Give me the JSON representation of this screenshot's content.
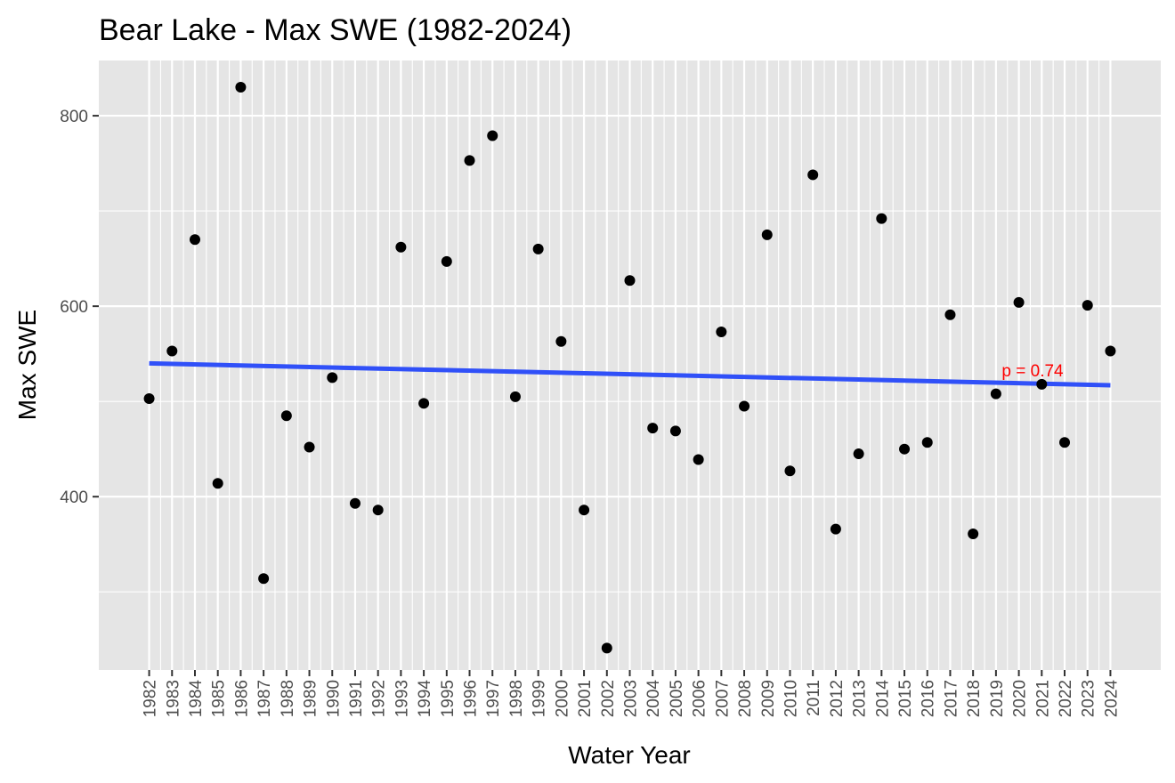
{
  "chart_data": {
    "type": "scatter",
    "title": "Bear Lake - Max SWE (1982-2024)",
    "xlabel": "Water Year",
    "ylabel": "Max SWE",
    "xlim": [
      1979.8,
      2026.2
    ],
    "ylim": [
      218,
      858
    ],
    "y_ticks": [
      400,
      600,
      800
    ],
    "x_ticks": [
      1982,
      1983,
      1984,
      1985,
      1986,
      1987,
      1988,
      1989,
      1990,
      1991,
      1992,
      1993,
      1994,
      1995,
      1996,
      1997,
      1998,
      1999,
      2000,
      2001,
      2002,
      2003,
      2004,
      2005,
      2006,
      2007,
      2008,
      2009,
      2010,
      2011,
      2012,
      2013,
      2014,
      2015,
      2016,
      2017,
      2018,
      2019,
      2020,
      2021,
      2022,
      2023,
      2024
    ],
    "x_tick_labels": [
      "1982",
      "1983",
      "1984",
      "1985",
      "1986",
      "1987",
      "1988",
      "1989",
      "1990",
      "1991",
      "1992",
      "1993",
      "1994",
      "1995",
      "1996",
      "1997",
      "1998",
      "1999",
      "2000",
      "2001",
      "2002",
      "2003",
      "2004",
      "2005",
      "2006",
      "2007",
      "2008",
      "2009",
      "2010",
      "2011",
      "2012",
      "2013",
      "2014",
      "2015",
      "2016",
      "2017",
      "2018",
      "2019",
      "2020",
      "2021",
      "2022",
      "2023",
      "2024"
    ],
    "y_tick_labels": [
      "400",
      "600",
      "800"
    ],
    "grid": true,
    "points": [
      {
        "x": 1982,
        "y": 503
      },
      {
        "x": 1983,
        "y": 553
      },
      {
        "x": 1984,
        "y": 670
      },
      {
        "x": 1985,
        "y": 414
      },
      {
        "x": 1986,
        "y": 830
      },
      {
        "x": 1987,
        "y": 314
      },
      {
        "x": 1988,
        "y": 485
      },
      {
        "x": 1989,
        "y": 452
      },
      {
        "x": 1990,
        "y": 525
      },
      {
        "x": 1991,
        "y": 393
      },
      {
        "x": 1992,
        "y": 386
      },
      {
        "x": 1993,
        "y": 662
      },
      {
        "x": 1994,
        "y": 498
      },
      {
        "x": 1995,
        "y": 647
      },
      {
        "x": 1996,
        "y": 753
      },
      {
        "x": 1997,
        "y": 779
      },
      {
        "x": 1998,
        "y": 505
      },
      {
        "x": 1999,
        "y": 660
      },
      {
        "x": 2000,
        "y": 563
      },
      {
        "x": 2001,
        "y": 386
      },
      {
        "x": 2002,
        "y": 241
      },
      {
        "x": 2003,
        "y": 627
      },
      {
        "x": 2004,
        "y": 472
      },
      {
        "x": 2005,
        "y": 469
      },
      {
        "x": 2006,
        "y": 439
      },
      {
        "x": 2007,
        "y": 573
      },
      {
        "x": 2008,
        "y": 495
      },
      {
        "x": 2009,
        "y": 675
      },
      {
        "x": 2010,
        "y": 427
      },
      {
        "x": 2011,
        "y": 738
      },
      {
        "x": 2012,
        "y": 366
      },
      {
        "x": 2013,
        "y": 445
      },
      {
        "x": 2014,
        "y": 692
      },
      {
        "x": 2015,
        "y": 450
      },
      {
        "x": 2016,
        "y": 457
      },
      {
        "x": 2017,
        "y": 591
      },
      {
        "x": 2018,
        "y": 361
      },
      {
        "x": 2019,
        "y": 508
      },
      {
        "x": 2020,
        "y": 604
      },
      {
        "x": 2021,
        "y": 518
      },
      {
        "x": 2022,
        "y": 457
      },
      {
        "x": 2023,
        "y": 601
      },
      {
        "x": 2024,
        "y": 553
      }
    ],
    "trend_line": {
      "x": [
        1982,
        2024
      ],
      "y": [
        540,
        517
      ],
      "color": "#3050F8"
    },
    "annotation": {
      "text": "p = 0.74",
      "x": 2020.6,
      "y": 533,
      "color": "#FF0000"
    },
    "panel_background": "#E5E5E5",
    "point_color": "#000000",
    "grid_color": "#FFFFFF"
  }
}
